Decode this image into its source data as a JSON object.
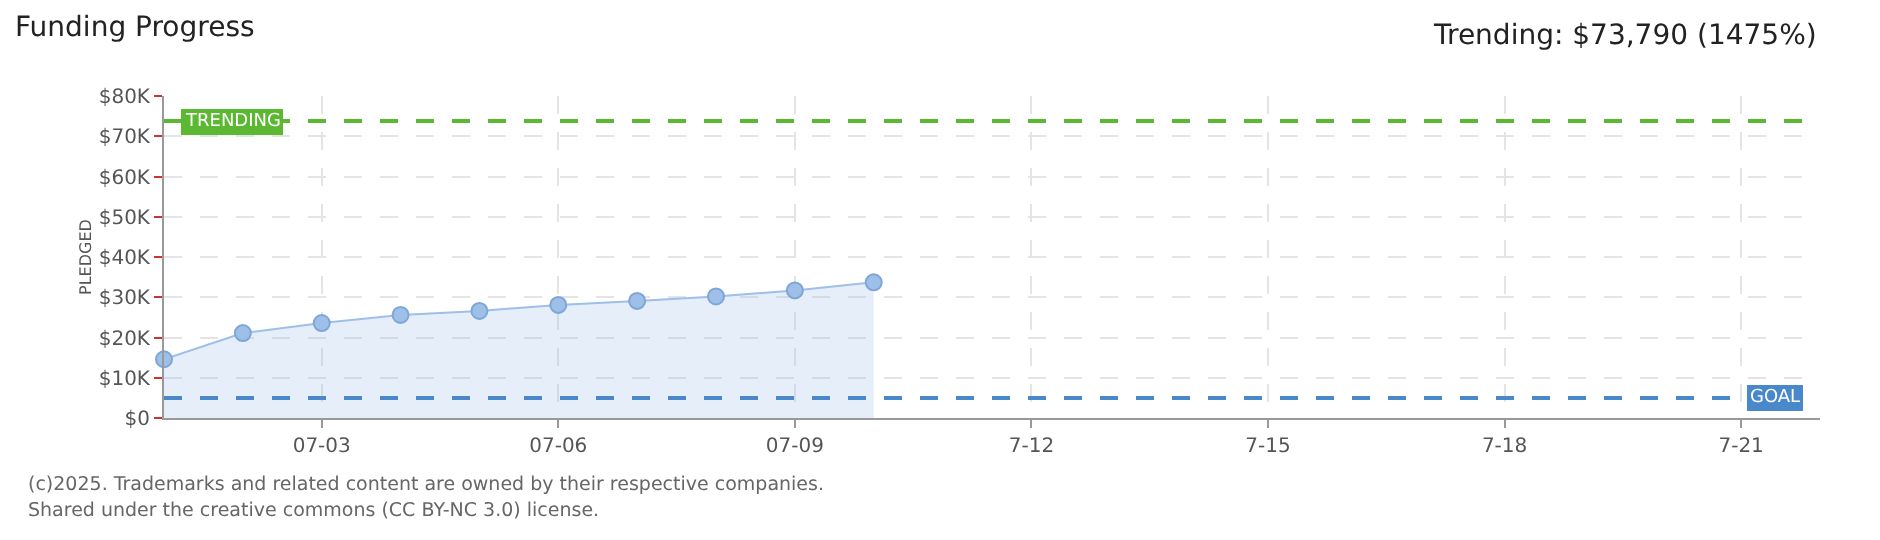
{
  "chart_data": {
    "type": "area",
    "title": "Funding Progress",
    "ylabel": "PLEDGED",
    "annotations": [
      "Trending: $73,790 (1475%)",
      "(c)2025. Trademarks and related content are owned by their respective companies.",
      "Shared under the creative commons (CC BY-NC 3.0) license."
    ],
    "x": [
      "--07-01",
      "--07-02",
      "--07-03",
      "--07-04",
      "--07-05",
      "--07-06",
      "--07-07",
      "--07-08",
      "--07-09",
      "--07-10"
    ],
    "series": [
      {
        "color": "#9dbfe8",
        "values": [
          14600,
          21100,
          23600,
          25600,
          26600,
          28100,
          29100,
          30200,
          31700,
          33700
        ]
      }
    ],
    "xlim": [
      "--07-01",
      "--07-22"
    ],
    "xticks": [
      {
        "value": "--07-03",
        "label": "07-03"
      },
      {
        "value": "--07-06",
        "label": "07-06"
      },
      {
        "value": "--07-09",
        "label": "07-09"
      },
      {
        "value": "--07-12",
        "label": "7-12"
      },
      {
        "value": "--07-15",
        "label": "7-15"
      },
      {
        "value": "--07-18",
        "label": "7-18"
      },
      {
        "value": "--07-21",
        "label": "7-21"
      }
    ],
    "ylim": [
      0,
      80000
    ],
    "yticks": [
      {
        "value": 0,
        "label": "$0"
      },
      {
        "value": 10000,
        "label": "$10K"
      },
      {
        "value": 20000,
        "label": "$20K"
      },
      {
        "value": 30000,
        "label": "$30K"
      },
      {
        "value": 40000,
        "label": "$40K"
      },
      {
        "value": 50000,
        "label": "$50K"
      },
      {
        "value": 60000,
        "label": "$60K"
      },
      {
        "value": 70000,
        "label": "$70K"
      },
      {
        "value": 80000,
        "label": "$80K"
      }
    ],
    "ref_lines": [
      {
        "axis": "y",
        "value": 73790,
        "label": "TRENDING",
        "color": "#5cb832",
        "line_style": "dashed"
      },
      {
        "axis": "y",
        "value": 5000,
        "label": "GOAL",
        "color": "#4a88cc",
        "line_style": "dashed"
      }
    ],
    "grid": true,
    "marker": "circle",
    "line_style": "solid"
  }
}
